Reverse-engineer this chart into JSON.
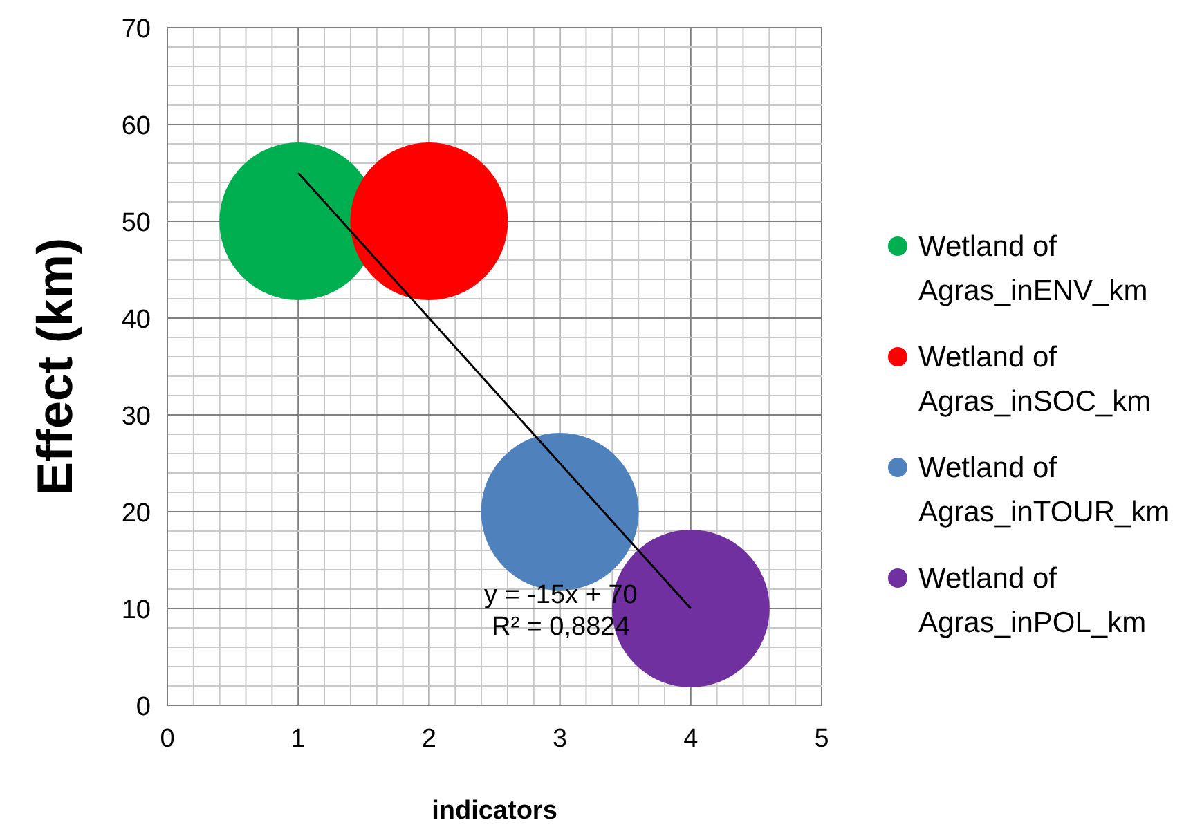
{
  "chart_data": {
    "type": "bubble",
    "xlabel": "indicators",
    "ylabel": "Effect (km)",
    "xlim": [
      0,
      5
    ],
    "xticks": [
      0,
      1,
      2,
      3,
      4,
      5
    ],
    "ylim": [
      0,
      70
    ],
    "yticks": [
      0,
      10,
      20,
      30,
      40,
      50,
      60,
      70
    ],
    "grid": true,
    "legend": "right",
    "series": [
      {
        "name": "Wetland of Agras_inENV_km",
        "color": "#00b050",
        "x": [
          1
        ],
        "values": [
          50
        ],
        "sizes": [
          1
        ]
      },
      {
        "name": "Wetland of Agras_inSOC_km",
        "color": "#ff0000",
        "x": [
          2
        ],
        "values": [
          50
        ],
        "sizes": [
          1
        ]
      },
      {
        "name": "Wetland of Agras_inTOUR_km",
        "color": "#4f81bd",
        "x": [
          3
        ],
        "values": [
          20
        ],
        "sizes": [
          1
        ]
      },
      {
        "name": "Wetland of Agras_inPOL_km",
        "color": "#7030a0",
        "x": [
          4
        ],
        "values": [
          10
        ],
        "sizes": [
          1
        ]
      },
      {
        "type": "line",
        "color": "#000000",
        "x": [
          1,
          4
        ],
        "values": [
          55,
          10
        ]
      }
    ],
    "annotations": [
      "y = -15x + 70",
      "R² = 0,8824"
    ]
  }
}
